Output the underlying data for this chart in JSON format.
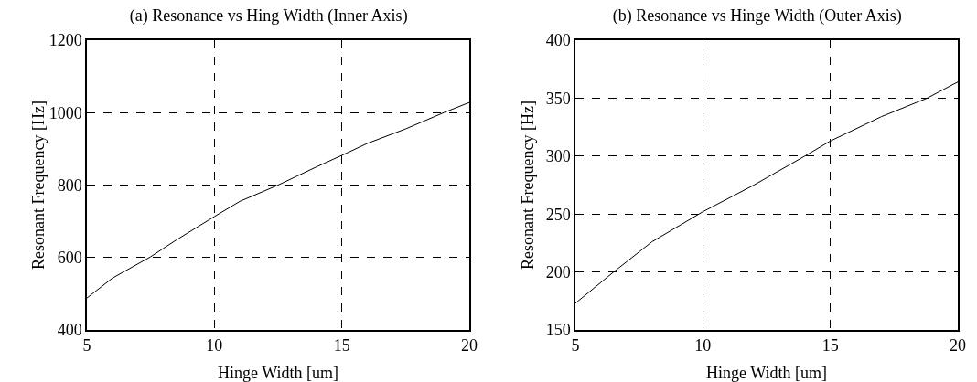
{
  "chart_data": [
    {
      "type": "line",
      "title": "(a) Resonance vs Hing Width (Inner Axis)",
      "xlabel": "Hinge Width [um]",
      "ylabel": "Resonant Frequency [Hz]",
      "xlim": [
        5,
        20
      ],
      "xticks": [
        5,
        10,
        15,
        20
      ],
      "ylim": [
        400,
        1200
      ],
      "yticks": [
        400,
        600,
        800,
        1000,
        1200
      ],
      "grid": true,
      "line_style": "solid",
      "series": [
        {
          "color": "#000000",
          "x": [
            5,
            6,
            7.5,
            8.5,
            10,
            11,
            12.5,
            14,
            15,
            16,
            17.5,
            19,
            20
          ],
          "values": [
            488,
            543,
            602,
            648,
            713,
            755,
            800,
            850,
            882,
            915,
            955,
            1000,
            1028
          ]
        }
      ]
    },
    {
      "type": "line",
      "title": "(b) Resonance vs Hinge Width (Outer Axis)",
      "xlabel": "Hinge Width [um]",
      "ylabel": "Resonant Frequency [Hz]",
      "xlim": [
        5,
        20
      ],
      "xticks": [
        5,
        10,
        15,
        20
      ],
      "ylim": [
        150,
        400
      ],
      "yticks": [
        150,
        200,
        250,
        300,
        350,
        400
      ],
      "grid": true,
      "line_style": "solid",
      "series": [
        {
          "color": "#000000",
          "x": [
            5,
            6.5,
            8,
            10,
            12,
            14,
            15,
            17,
            18.8,
            20
          ],
          "values": [
            173,
            200,
            226,
            252,
            275,
            300,
            313,
            334,
            350,
            364
          ]
        }
      ]
    }
  ]
}
